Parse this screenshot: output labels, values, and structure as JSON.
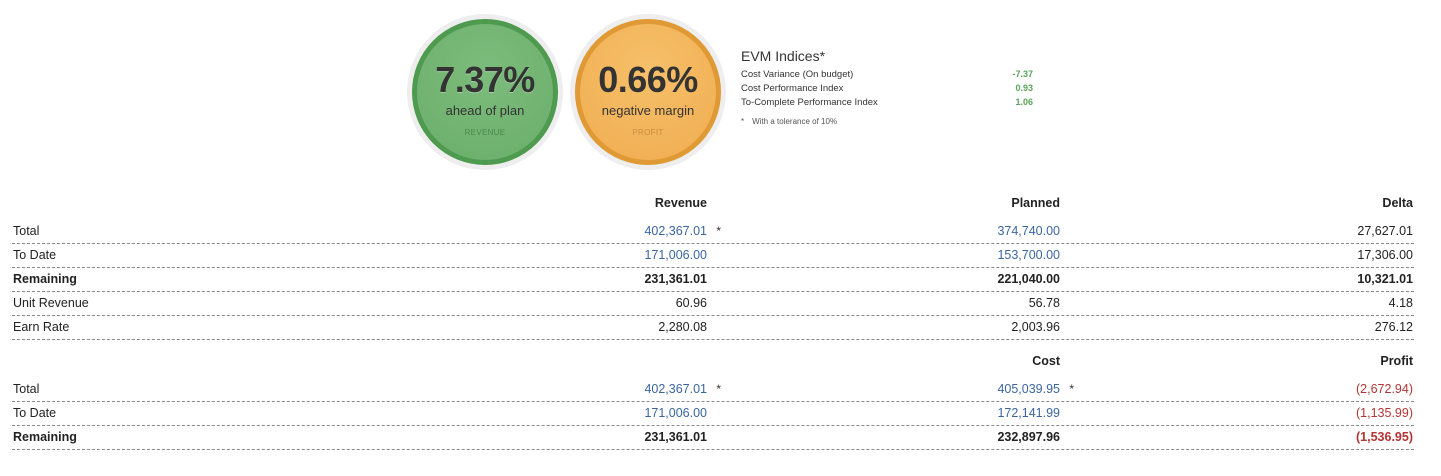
{
  "gauges": {
    "revenue": {
      "value": "7.37%",
      "caption": "ahead of plan",
      "tag": "REVENUE",
      "color": "#6aad6a"
    },
    "profit": {
      "value": "0.66%",
      "caption": "negative margin",
      "tag": "PROFIT",
      "color": "#f0ac50"
    }
  },
  "evm": {
    "title": "EVM Indices*",
    "rows": [
      {
        "label": "Cost Variance (On budget)",
        "value": "-7.37"
      },
      {
        "label": "Cost Performance Index",
        "value": "0.93"
      },
      {
        "label": "To-Complete Performance Index",
        "value": "1.06"
      }
    ],
    "note_star": "*",
    "note": "With a tolerance of 10%"
  },
  "revenue_table": {
    "headers": {
      "col1": "Revenue",
      "col2": "Planned",
      "col3": "Delta"
    },
    "rows": [
      {
        "label": "Total",
        "c1": "402,367.01",
        "c1_star": "*",
        "c2": "374,740.00",
        "c3": "27,627.01"
      },
      {
        "label": "To Date",
        "c1": "171,006.00",
        "c2": "153,700.00",
        "c3": "17,306.00"
      },
      {
        "label": "Remaining",
        "c1": "231,361.01",
        "c2": "221,040.00",
        "c3": "10,321.01"
      },
      {
        "label": "Unit Revenue",
        "c1": "60.96",
        "c2": "56.78",
        "c3": "4.18"
      },
      {
        "label": "Earn Rate",
        "c1": "2,280.08",
        "c2": "2,003.96",
        "c3": "276.12"
      }
    ]
  },
  "profit_table": {
    "headers": {
      "col2": "Cost",
      "col3": "Profit"
    },
    "rows": [
      {
        "label": "Total",
        "c1": "402,367.01",
        "c1_star": "*",
        "c2": "405,039.95",
        "c2_star": "*",
        "c3": "(2,672.94)"
      },
      {
        "label": "To Date",
        "c1": "171,006.00",
        "c2": "172,141.99",
        "c3": "(1,135.99)"
      },
      {
        "label": "Remaining",
        "c1": "231,361.01",
        "c2": "232,897.96",
        "c3": "(1,536.95)"
      }
    ]
  },
  "colors": {
    "link_blue": "#3a66a0",
    "negative_red": "#b23434",
    "evm_green": "#5aa45a"
  }
}
